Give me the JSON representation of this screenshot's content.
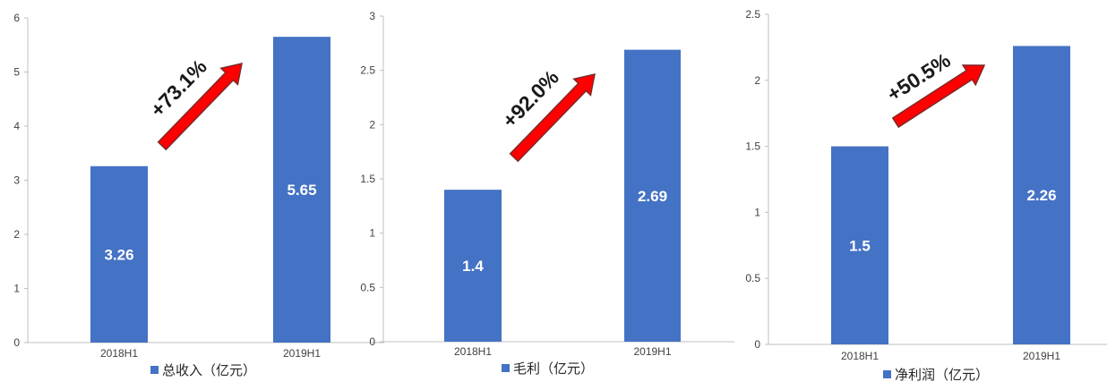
{
  "colors": {
    "bar": "#4472c4",
    "arrow": "#ff0000",
    "arrow_edge": "#7f2a2a",
    "axis": "#bfbfbf",
    "text": "#404040"
  },
  "chart_data": [
    {
      "type": "bar",
      "categories": [
        "2018H1",
        "2019H1"
      ],
      "series": [
        {
          "name": "总收入（亿元）",
          "values": [
            3.26,
            5.65
          ]
        }
      ],
      "value_labels": [
        "3.26",
        "5.65"
      ],
      "yticks": [
        0,
        1,
        2,
        3,
        4,
        5,
        6
      ],
      "ytick_labels": [
        "0",
        "1",
        "2",
        "3",
        "4",
        "5",
        "6"
      ],
      "ylim": [
        0,
        6
      ],
      "annotation": "+73.1%",
      "grid": false,
      "legend": "bottom"
    },
    {
      "type": "bar",
      "categories": [
        "2018H1",
        "2019H1"
      ],
      "series": [
        {
          "name": "毛利（亿元）",
          "values": [
            1.4,
            2.69
          ]
        }
      ],
      "value_labels": [
        "1.4",
        "2.69"
      ],
      "yticks": [
        0,
        0.5,
        1,
        1.5,
        2,
        2.5,
        3
      ],
      "ytick_labels": [
        "0",
        "0.5",
        "1",
        "1.5",
        "2",
        "2.5",
        "3"
      ],
      "ylim": [
        0,
        3
      ],
      "annotation": "+92.0%",
      "grid": false,
      "legend": "bottom"
    },
    {
      "type": "bar",
      "categories": [
        "2018H1",
        "2019H1"
      ],
      "series": [
        {
          "name": "净利润（亿元）",
          "values": [
            1.5,
            2.26
          ]
        }
      ],
      "value_labels": [
        "1.5",
        "2.26"
      ],
      "yticks": [
        0,
        0.5,
        1,
        1.5,
        2,
        2.5
      ],
      "ytick_labels": [
        "0",
        "0.5",
        "1",
        "1.5",
        "2",
        "2.5"
      ],
      "ylim": [
        0,
        2.5
      ],
      "annotation": "+50.5%",
      "grid": false,
      "legend": "bottom"
    }
  ]
}
